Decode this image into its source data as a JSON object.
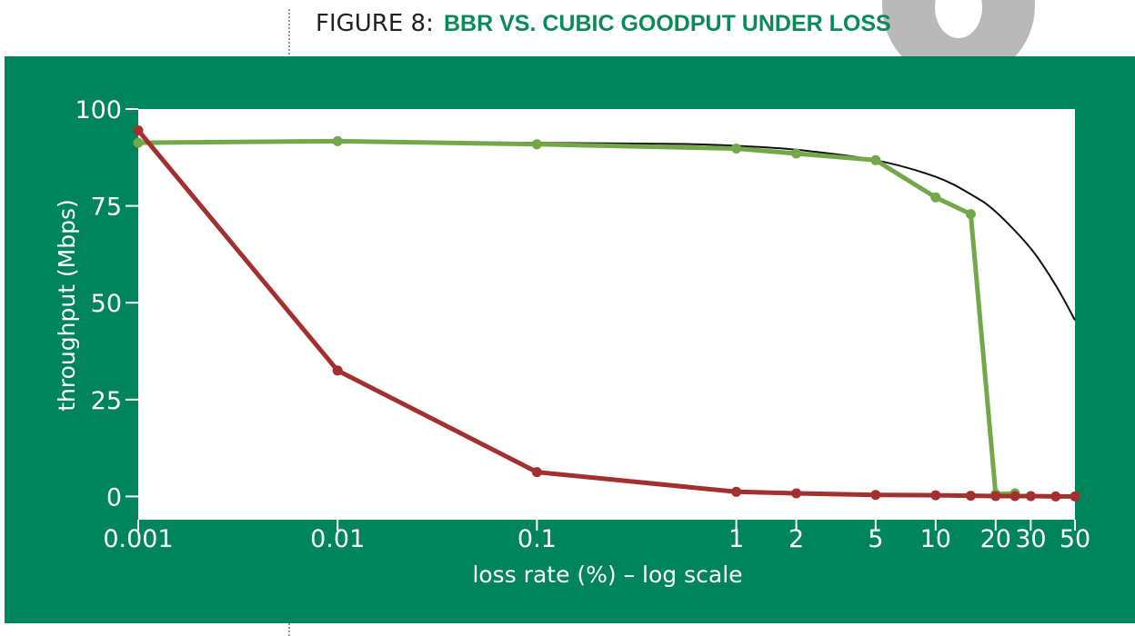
{
  "figure": {
    "title_prefix": "FIGURE 8:",
    "title_main": "BBR VS. CUBIC GOODPUT UNDER LOSS"
  },
  "colors": {
    "panel": "#00845c",
    "plot_bg": "#ffffff",
    "series_green": "#73a84a",
    "series_red": "#a3302e",
    "series_black": "#111111",
    "title_accent": "#0a8a5a",
    "badge": "#b9b9b9"
  },
  "chart_data": {
    "type": "line",
    "title": "BBR VS. CUBIC GOODPUT UNDER LOSS",
    "xlabel": "loss rate (%) – log scale",
    "ylabel": "throughput (Mbps)",
    "xscale": "log",
    "xlim": [
      0.001,
      50
    ],
    "ylim": [
      -6,
      100
    ],
    "grid": false,
    "x_ticks": [
      {
        "value": 0.001,
        "label": "0.001"
      },
      {
        "value": 0.01,
        "label": "0.01"
      },
      {
        "value": 0.1,
        "label": "0.1"
      },
      {
        "value": 1,
        "label": "1"
      },
      {
        "value": 2,
        "label": "2"
      },
      {
        "value": 5,
        "label": "5"
      },
      {
        "value": 10,
        "label": "10"
      },
      {
        "value": 20,
        "label": "20"
      },
      {
        "value": 30,
        "label": "30"
      },
      {
        "value": 50,
        "label": "50"
      }
    ],
    "y_ticks": [
      {
        "value": 0,
        "label": "0"
      },
      {
        "value": 25,
        "label": "25"
      },
      {
        "value": 50,
        "label": "50"
      },
      {
        "value": 75,
        "label": "75"
      },
      {
        "value": 100,
        "label": "100"
      }
    ],
    "series": [
      {
        "key": "green",
        "style": "markers",
        "x": [
          0.001,
          0.01,
          0.1,
          1,
          2,
          5,
          10,
          15,
          20,
          25
        ],
        "y": [
          91.3,
          91.7,
          90.9,
          89.8,
          88.5,
          86.8,
          77.2,
          72.9,
          0.6,
          0.8
        ]
      },
      {
        "key": "red",
        "style": "markers",
        "x": [
          0.001,
          0.01,
          0.1,
          1,
          2,
          5,
          10,
          15,
          20,
          25,
          30,
          40,
          50
        ],
        "y": [
          94.5,
          32.5,
          6.3,
          1.2,
          0.8,
          0.4,
          0.3,
          0.2,
          0.1,
          0.1,
          0.1,
          0.0,
          0.0
        ]
      },
      {
        "key": "black",
        "style": "curve",
        "x": [
          0.001,
          0.01,
          0.1,
          0.5,
          1,
          2,
          5,
          10,
          15,
          20,
          30,
          40,
          50
        ],
        "y": [
          91.5,
          91.5,
          91.3,
          91.0,
          90.5,
          89.5,
          86.8,
          82.5,
          78.0,
          73.5,
          64.0,
          54.5,
          45.5
        ]
      }
    ]
  }
}
